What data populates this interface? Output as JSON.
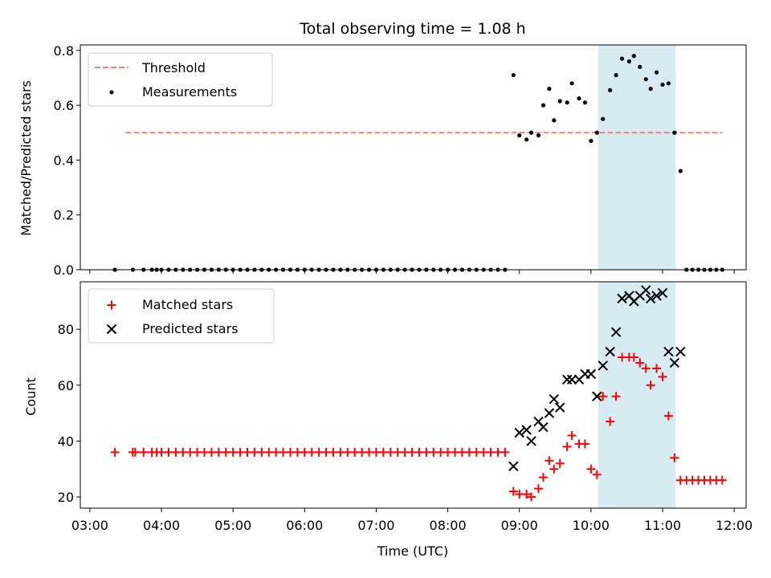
{
  "chart_data": [
    {
      "type": "scatter",
      "title": "Total observing time = 1.08 h",
      "ylabel": "Matched/Predicted stars",
      "ylim": [
        0,
        0.82
      ],
      "yticks": [
        "0.0",
        "0.2",
        "0.4",
        "0.6",
        "0.8"
      ],
      "ytick_values": [
        0,
        0.2,
        0.4,
        0.6,
        0.8
      ],
      "legend_position": "top-left",
      "colors": {
        "threshold": "#f08080",
        "measurements": "#000000",
        "band": "#add8e6"
      },
      "highlight_band": {
        "start": "10:06",
        "end": "11:11"
      },
      "threshold": {
        "name": "Threshold",
        "value": 0.5,
        "start": "03:30",
        "end": "11:50"
      },
      "series": [
        {
          "name": "Measurements",
          "points": [
            [
              "03:21",
              0
            ],
            [
              "03:36",
              0
            ],
            [
              "03:45",
              0
            ],
            [
              "03:52",
              0
            ],
            [
              "03:56",
              0
            ],
            [
              "04:00",
              0
            ],
            [
              "04:06",
              0
            ],
            [
              "04:12",
              0
            ],
            [
              "04:18",
              0
            ],
            [
              "04:24",
              0
            ],
            [
              "04:30",
              0
            ],
            [
              "04:36",
              0
            ],
            [
              "04:42",
              0
            ],
            [
              "04:48",
              0
            ],
            [
              "04:54",
              0
            ],
            [
              "05:00",
              0
            ],
            [
              "05:06",
              0
            ],
            [
              "05:12",
              0
            ],
            [
              "05:18",
              0
            ],
            [
              "05:24",
              0
            ],
            [
              "05:30",
              0
            ],
            [
              "05:36",
              0
            ],
            [
              "05:42",
              0
            ],
            [
              "05:48",
              0
            ],
            [
              "05:54",
              0
            ],
            [
              "06:00",
              0
            ],
            [
              "06:06",
              0
            ],
            [
              "06:12",
              0
            ],
            [
              "06:18",
              0
            ],
            [
              "06:24",
              0
            ],
            [
              "06:30",
              0
            ],
            [
              "06:36",
              0
            ],
            [
              "06:42",
              0
            ],
            [
              "06:48",
              0
            ],
            [
              "06:54",
              0
            ],
            [
              "07:00",
              0
            ],
            [
              "07:06",
              0
            ],
            [
              "07:12",
              0
            ],
            [
              "07:18",
              0
            ],
            [
              "07:24",
              0
            ],
            [
              "07:30",
              0
            ],
            [
              "07:36",
              0
            ],
            [
              "07:42",
              0
            ],
            [
              "07:48",
              0
            ],
            [
              "07:54",
              0
            ],
            [
              "08:00",
              0
            ],
            [
              "08:06",
              0
            ],
            [
              "08:12",
              0
            ],
            [
              "08:18",
              0
            ],
            [
              "08:24",
              0
            ],
            [
              "08:30",
              0
            ],
            [
              "08:36",
              0
            ],
            [
              "08:42",
              0
            ],
            [
              "08:48",
              0
            ],
            [
              "08:55",
              0.71
            ],
            [
              "09:00",
              0.49
            ],
            [
              "09:06",
              0.475
            ],
            [
              "09:10",
              0.5
            ],
            [
              "09:16",
              0.49
            ],
            [
              "09:20",
              0.6
            ],
            [
              "09:25",
              0.66
            ],
            [
              "09:29",
              0.545
            ],
            [
              "09:34",
              0.615
            ],
            [
              "09:40",
              0.61
            ],
            [
              "09:44",
              0.68
            ],
            [
              "09:50",
              0.625
            ],
            [
              "09:55",
              0.61
            ],
            [
              "10:00",
              0.47
            ],
            [
              "10:05",
              0.5
            ],
            [
              "10:10",
              0.55
            ],
            [
              "10:16",
              0.655
            ],
            [
              "10:21",
              0.71
            ],
            [
              "10:26",
              0.77
            ],
            [
              "10:32",
              0.76
            ],
            [
              "10:36",
              0.78
            ],
            [
              "10:41",
              0.74
            ],
            [
              "10:46",
              0.695
            ],
            [
              "10:50",
              0.66
            ],
            [
              "10:55",
              0.72
            ],
            [
              "11:00",
              0.675
            ],
            [
              "11:05",
              0.68
            ],
            [
              "11:10",
              0.5
            ],
            [
              "11:15",
              0.36
            ],
            [
              "11:20",
              0
            ],
            [
              "11:25",
              0
            ],
            [
              "11:30",
              0
            ],
            [
              "11:35",
              0
            ],
            [
              "11:40",
              0
            ],
            [
              "11:45",
              0
            ],
            [
              "11:50",
              0
            ]
          ]
        }
      ]
    },
    {
      "type": "scatter",
      "xlabel": "Time (UTC)",
      "ylabel": "Count",
      "ylim": [
        16,
        97
      ],
      "yticks": [
        "20",
        "40",
        "60",
        "80"
      ],
      "ytick_values": [
        20,
        40,
        60,
        80
      ],
      "xticks": [
        "03:00",
        "04:00",
        "05:00",
        "06:00",
        "07:00",
        "08:00",
        "09:00",
        "10:00",
        "11:00",
        "12:00"
      ],
      "legend_position": "top-left",
      "colors": {
        "matched": "#ff0000",
        "predicted": "#000000",
        "band": "#add8e6"
      },
      "highlight_band": {
        "start": "10:06",
        "end": "11:11"
      },
      "series": [
        {
          "name": "Matched stars",
          "points": [
            [
              "03:21",
              36
            ],
            [
              "03:36",
              36
            ],
            [
              "03:38",
              36
            ],
            [
              "03:45",
              36
            ],
            [
              "03:52",
              36
            ],
            [
              "03:56",
              36
            ],
            [
              "04:00",
              36
            ],
            [
              "04:06",
              36
            ],
            [
              "04:12",
              36
            ],
            [
              "04:18",
              36
            ],
            [
              "04:24",
              36
            ],
            [
              "04:30",
              36
            ],
            [
              "04:36",
              36
            ],
            [
              "04:42",
              36
            ],
            [
              "04:48",
              36
            ],
            [
              "04:54",
              36
            ],
            [
              "05:00",
              36
            ],
            [
              "05:06",
              36
            ],
            [
              "05:12",
              36
            ],
            [
              "05:18",
              36
            ],
            [
              "05:24",
              36
            ],
            [
              "05:30",
              36
            ],
            [
              "05:36",
              36
            ],
            [
              "05:42",
              36
            ],
            [
              "05:48",
              36
            ],
            [
              "05:54",
              36
            ],
            [
              "06:00",
              36
            ],
            [
              "06:06",
              36
            ],
            [
              "06:12",
              36
            ],
            [
              "06:18",
              36
            ],
            [
              "06:24",
              36
            ],
            [
              "06:30",
              36
            ],
            [
              "06:36",
              36
            ],
            [
              "06:42",
              36
            ],
            [
              "06:48",
              36
            ],
            [
              "06:54",
              36
            ],
            [
              "07:00",
              36
            ],
            [
              "07:06",
              36
            ],
            [
              "07:12",
              36
            ],
            [
              "07:18",
              36
            ],
            [
              "07:24",
              36
            ],
            [
              "07:30",
              36
            ],
            [
              "07:36",
              36
            ],
            [
              "07:42",
              36
            ],
            [
              "07:48",
              36
            ],
            [
              "07:54",
              36
            ],
            [
              "08:00",
              36
            ],
            [
              "08:06",
              36
            ],
            [
              "08:12",
              36
            ],
            [
              "08:18",
              36
            ],
            [
              "08:24",
              36
            ],
            [
              "08:30",
              36
            ],
            [
              "08:36",
              36
            ],
            [
              "08:42",
              36
            ],
            [
              "08:48",
              36
            ],
            [
              "08:55",
              22
            ],
            [
              "09:00",
              21
            ],
            [
              "09:06",
              21
            ],
            [
              "09:10",
              20
            ],
            [
              "09:16",
              23
            ],
            [
              "09:20",
              27
            ],
            [
              "09:25",
              33
            ],
            [
              "09:29",
              30
            ],
            [
              "09:34",
              32
            ],
            [
              "09:40",
              38
            ],
            [
              "09:44",
              42
            ],
            [
              "09:50",
              39
            ],
            [
              "09:55",
              39
            ],
            [
              "10:00",
              30
            ],
            [
              "10:05",
              28
            ],
            [
              "10:10",
              56
            ],
            [
              "10:16",
              47
            ],
            [
              "10:21",
              56
            ],
            [
              "10:26",
              70
            ],
            [
              "10:32",
              70
            ],
            [
              "10:36",
              70
            ],
            [
              "10:41",
              68
            ],
            [
              "10:46",
              66
            ],
            [
              "10:50",
              60
            ],
            [
              "10:55",
              66
            ],
            [
              "11:00",
              63
            ],
            [
              "11:05",
              49
            ],
            [
              "11:10",
              34
            ],
            [
              "11:15",
              26
            ],
            [
              "11:20",
              26
            ],
            [
              "11:25",
              26
            ],
            [
              "11:30",
              26
            ],
            [
              "11:35",
              26
            ],
            [
              "11:40",
              26
            ],
            [
              "11:45",
              26
            ],
            [
              "11:50",
              26
            ]
          ]
        },
        {
          "name": "Predicted stars",
          "points": [
            [
              "08:55",
              31
            ],
            [
              "09:00",
              43
            ],
            [
              "09:06",
              44
            ],
            [
              "09:10",
              40
            ],
            [
              "09:16",
              47
            ],
            [
              "09:20",
              45
            ],
            [
              "09:25",
              50
            ],
            [
              "09:29",
              55
            ],
            [
              "09:34",
              52
            ],
            [
              "09:40",
              62
            ],
            [
              "09:44",
              62
            ],
            [
              "09:50",
              62
            ],
            [
              "09:55",
              64
            ],
            [
              "10:00",
              64
            ],
            [
              "10:05",
              56
            ],
            [
              "10:10",
              67
            ],
            [
              "10:16",
              72
            ],
            [
              "10:21",
              79
            ],
            [
              "10:26",
              91
            ],
            [
              "10:32",
              92
            ],
            [
              "10:36",
              90
            ],
            [
              "10:41",
              92
            ],
            [
              "10:46",
              94
            ],
            [
              "10:50",
              91
            ],
            [
              "10:55",
              92
            ],
            [
              "11:00",
              93
            ],
            [
              "11:05",
              72
            ],
            [
              "11:10",
              68
            ],
            [
              "11:15",
              72
            ]
          ]
        }
      ]
    }
  ]
}
